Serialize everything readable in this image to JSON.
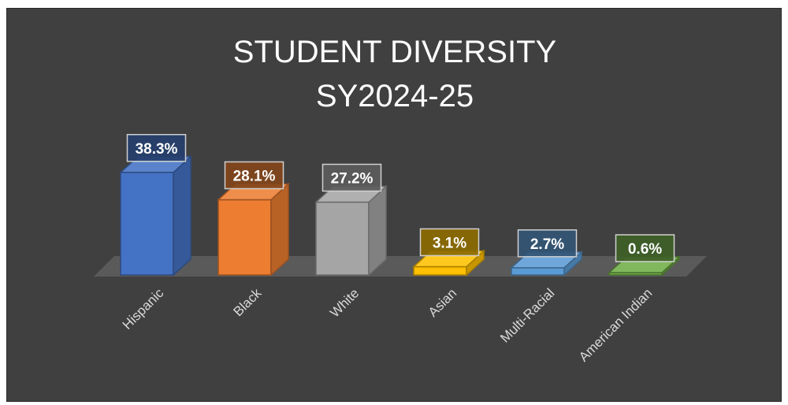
{
  "chart_data": {
    "type": "bar",
    "title_lines": [
      "STUDENT DIVERSITY",
      "SY2024-25"
    ],
    "categories": [
      "Hispanic",
      "Black",
      "White",
      "Asian",
      "Multi-Racial",
      "American Indian"
    ],
    "values": [
      38.3,
      28.1,
      27.2,
      3.1,
      2.7,
      0.6
    ],
    "data_labels": [
      "38.3%",
      "28.1%",
      "27.2%",
      "3.1%",
      "2.7%",
      "0.6%"
    ],
    "ylim": [
      0,
      40
    ],
    "grid": false,
    "legend": "none",
    "colors": {
      "Hispanic": "#4472c4",
      "Black": "#ed7d31",
      "White": "#a5a5a5",
      "Asian": "#ffc000",
      "Multi-Racial": "#5b9bd5",
      "American Indian": "#70ad47"
    },
    "background": "#404040"
  }
}
